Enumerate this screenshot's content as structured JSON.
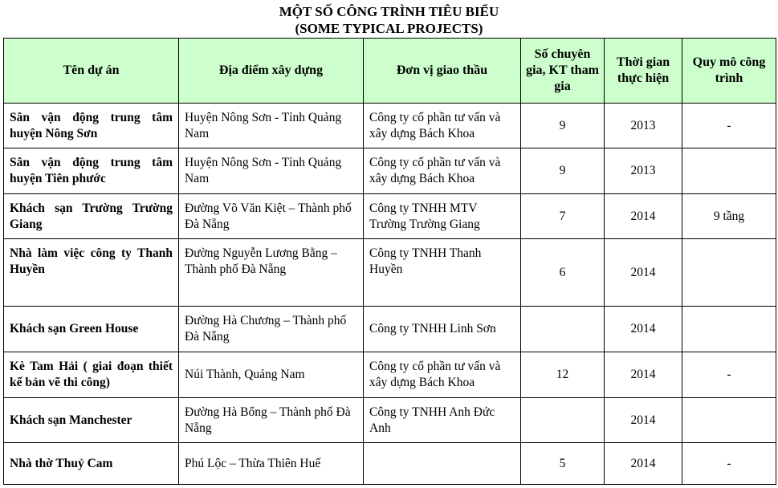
{
  "title": "MỘT SỐ CÔNG TRÌNH TIÊU BIỂU",
  "subtitle": "(SOME TYPICAL PROJECTS)",
  "headers": [
    "Tên dự án",
    "Địa điểm xây dựng",
    "Đơn vị giao thầu",
    "Số chuyên gia, KT tham gia",
    "Thời gian thực hiện",
    "Quy mô công trình"
  ],
  "rows": [
    {
      "name": "Sân vận động trung tâm huyện Nông Sơn",
      "location": "Huyện Nông Sơn - Tỉnh Quảng Nam",
      "contractor": "Công ty cổ phần tư vấn và xây dựng Bách Khoa",
      "experts": "9",
      "year": "2013",
      "scale": "-"
    },
    {
      "name": "Sân vận động trung tâm huyện Tiên phước",
      "location": "Huyện Nông Sơn - Tỉnh Quảng Nam",
      "contractor": "Công ty cổ phần tư vấn và xây dựng Bách Khoa",
      "experts": "9",
      "year": "2013",
      "scale": ""
    },
    {
      "name": "Khách sạn Trường Trường Giang",
      "location": "Đường Võ Văn Kiệt – Thành phố Đà Nẵng",
      "contractor": "Công ty TNHH MTV Trường Trường Giang",
      "experts": "7",
      "year": "2014",
      "scale": "9 tầng"
    },
    {
      "name": "Nhà làm việc công ty Thanh Huyền",
      "location": "Đường Nguyễn Lương Bằng – Thành phố Đà Nẵng",
      "contractor": "Công ty TNHH Thanh Huyền",
      "experts": "6",
      "year": "2014",
      "scale": ""
    },
    {
      "name": "Khách sạn Green House",
      "location": "Đường Hà Chương – Thành phố Đà Nẵng",
      "contractor": "Công ty TNHH Linh Sơn",
      "experts": "",
      "year": "2014",
      "scale": ""
    },
    {
      "name": "Kè Tam Hải ( giai đoạn thiết kế bản vẽ thi công)",
      "location": "Núi Thành, Quảng Nam",
      "contractor": "Công ty cổ phần tư vấn và xây dựng Bách Khoa",
      "experts": "12",
      "year": "2014",
      "scale": "-"
    },
    {
      "name": "Khách sạn Manchester",
      "location": "Đường Hà Bổng – Thành phố Đà Nẵng",
      "contractor": "Công ty TNHH Anh Đức Anh",
      "experts": "",
      "year": "2014",
      "scale": ""
    },
    {
      "name": "Nhà thờ Thuỷ Cam",
      "location": "Phú Lộc – Thừa Thiên Huế",
      "contractor": "",
      "experts": "5",
      "year": "2014",
      "scale": "-"
    }
  ]
}
